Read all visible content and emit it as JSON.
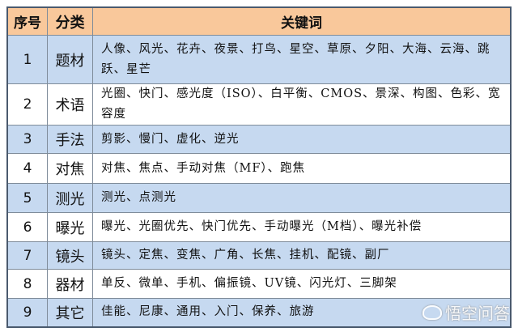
{
  "header": {
    "col_no": "序号",
    "col_category": "分类",
    "col_keywords": "关键词"
  },
  "colors": {
    "header_bg": "#f9c89b",
    "row_blue": "#c6d9f0",
    "row_white": "#ffffff"
  },
  "rows": [
    {
      "no": "1",
      "category": "题材",
      "keywords": "人像、风光、花卉、夜景、打鸟、星空、草原、夕阳、大海、云海、跳跃、星芒",
      "style": "blue"
    },
    {
      "no": "2",
      "category": "术语",
      "keywords": "光圈、快门、感光度（ISO）、白平衡、CMOS、景深、构图、色彩、宽容度",
      "style": "white"
    },
    {
      "no": "3",
      "category": "手法",
      "keywords": "剪影、慢门、虚化、逆光",
      "style": "blue"
    },
    {
      "no": "4",
      "category": "对焦",
      "keywords": "对焦、焦点、手动对焦（MF）、跑焦",
      "style": "white"
    },
    {
      "no": "5",
      "category": "测光",
      "keywords": "测光、点测光",
      "style": "blue"
    },
    {
      "no": "6",
      "category": "曝光",
      "keywords": "曝光、光圈优先、快门优先、手动曝光（M档）、曝光补偿",
      "style": "white"
    },
    {
      "no": "7",
      "category": "镜头",
      "keywords": "镜头、定焦、变焦、广角、长焦、挂机、配镜、副厂",
      "style": "blue"
    },
    {
      "no": "8",
      "category": "器材",
      "keywords": "单反、微单、手机、偏振镜、UV镜、闪光灯、三脚架",
      "style": "white"
    },
    {
      "no": "9",
      "category": "其它",
      "keywords": "佳能、尼康、通用、入门、保养、旅游",
      "style": "blue"
    }
  ],
  "watermark": {
    "text": "悟空问答",
    "icon": "wukong-logo-icon"
  }
}
